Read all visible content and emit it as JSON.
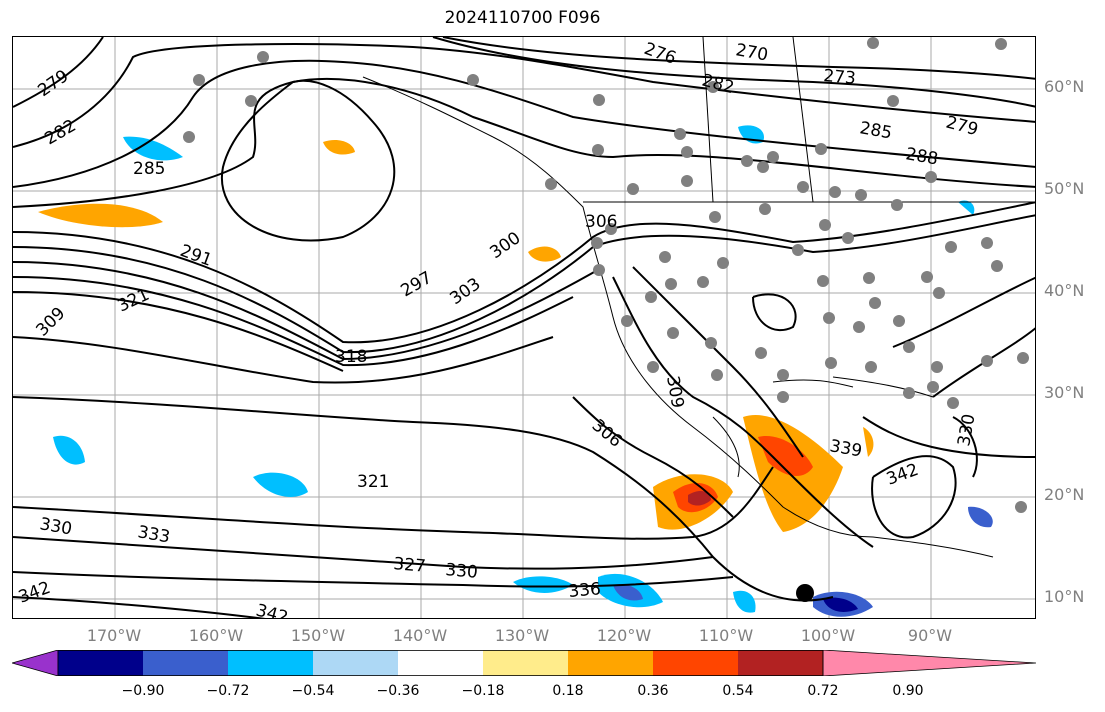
{
  "title": "2024110700 F096",
  "lat_labels": [
    "60°N",
    "50°N",
    "40°N",
    "30°N",
    "20°N",
    "10°N"
  ],
  "lon_labels": [
    "170°W",
    "160°W",
    "150°W",
    "140°W",
    "130°W",
    "120°W",
    "110°W",
    "100°W",
    "90°W"
  ],
  "contour_labels": [
    "279",
    "282",
    "285",
    "276",
    "270",
    "273",
    "282",
    "285",
    "288",
    "279",
    "291",
    "297",
    "300",
    "303",
    "306",
    "309",
    "321",
    "318",
    "306",
    "309",
    "321",
    "330",
    "333",
    "327",
    "330",
    "336",
    "339",
    "342",
    "342",
    "342",
    "330"
  ],
  "colorbar": {
    "ticks": [
      "−0.90",
      "−0.72",
      "−0.54",
      "−0.36",
      "−0.18",
      "0.18",
      "0.36",
      "0.54",
      "0.72",
      "0.90"
    ],
    "colors": [
      "#9932cc",
      "#00008b",
      "#3a5fcd",
      "#00bfff",
      "#add8f5",
      "#ffffff",
      "#ffec8b",
      "#ffa500",
      "#ff4500",
      "#b22222",
      "#ff88aa"
    ]
  }
}
